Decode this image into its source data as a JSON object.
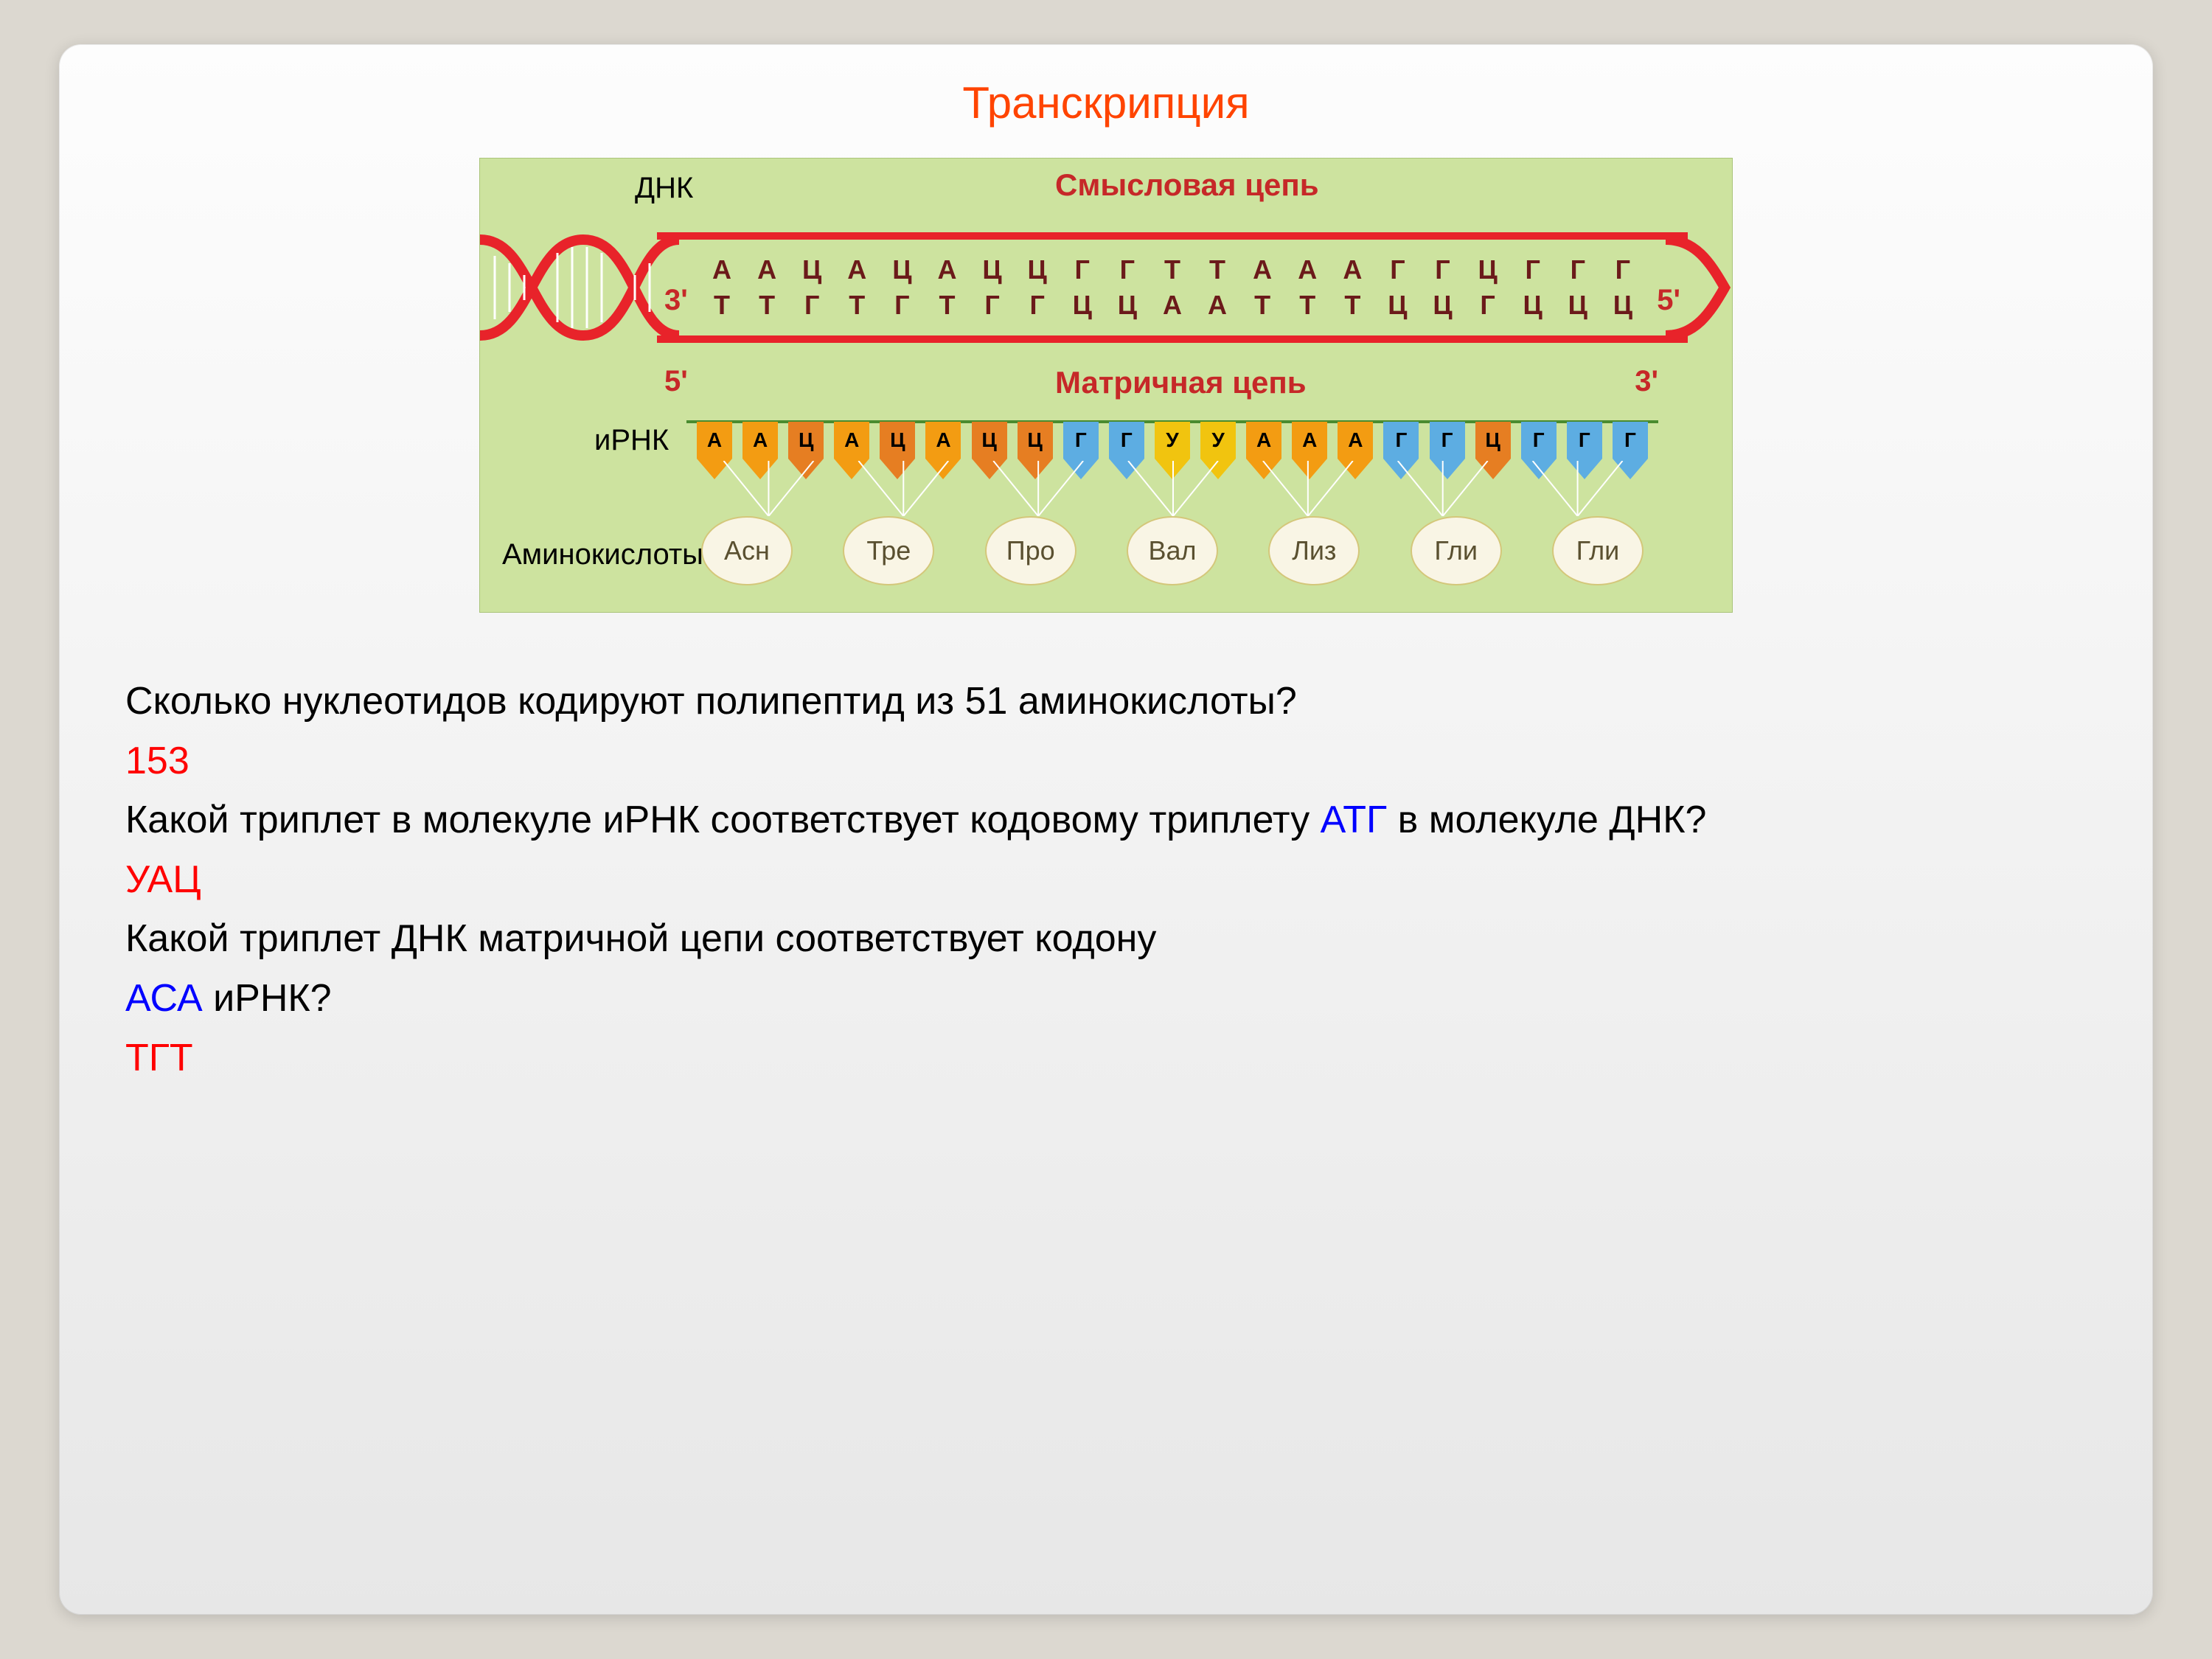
{
  "title": "Транскрипция",
  "diagram": {
    "dnk_label": "ДНК",
    "sense_chain_label": "Смысловая цепь",
    "template_chain_label": "Матричная цепь",
    "mrna_label": "иРНК",
    "amino_acids_label": "Аминокислоты",
    "end_3_prime": "3'",
    "end_5_prime": "5'",
    "sense_strand": [
      "А",
      "А",
      "Ц",
      "А",
      "Ц",
      "А",
      "Ц",
      "Ц",
      "Г",
      "Г",
      "Т",
      "Т",
      "А",
      "А",
      "А",
      "Г",
      "Г",
      "Ц",
      "Г",
      "Г",
      "Г"
    ],
    "template_strand": [
      "Т",
      "Т",
      "Г",
      "Т",
      "Г",
      "Т",
      "Г",
      "Г",
      "Ц",
      "Ц",
      "А",
      "А",
      "Т",
      "Т",
      "Т",
      "Ц",
      "Ц",
      "Г",
      "Ц",
      "Ц",
      "Ц"
    ],
    "mrna": [
      "А",
      "А",
      "Ц",
      "А",
      "Ц",
      "А",
      "Ц",
      "Ц",
      "Г",
      "Г",
      "У",
      "У",
      "А",
      "А",
      "А",
      "Г",
      "Г",
      "Ц",
      "Г",
      "Г",
      "Г"
    ],
    "mrna_colors": [
      "#f39c12",
      "#f39c12",
      "#e67e22",
      "#f39c12",
      "#e67e22",
      "#f39c12",
      "#e67e22",
      "#e67e22",
      "#5dade2",
      "#5dade2",
      "#f1c40f",
      "#f1c40f",
      "#f39c12",
      "#f39c12",
      "#f39c12",
      "#5dade2",
      "#5dade2",
      "#e67e22",
      "#5dade2",
      "#5dade2",
      "#5dade2"
    ],
    "amino_acids": [
      "Асн",
      "Тре",
      "Про",
      "Вал",
      "Лиз",
      "Гли",
      "Гли"
    ],
    "colors": {
      "dna_bar": "#e8232a",
      "mrna_line": "#4a8b2f",
      "diagram_bg": "#cde39f",
      "nt_color": "#6b1a1a",
      "aa_border": "#d4c77a",
      "aa_bg": "#f9f5e5"
    }
  },
  "questions": {
    "q1": "Сколько нуклеотидов кодируют полипептид из 51 аминокислоты?",
    "a1": "153",
    "q2_part1": "Какой триплет в молекуле иРНК соответствует кодовому триплету ",
    "q2_blue": "АТГ",
    "q2_part2": " в молекуле ДНК?",
    "a2": "УАЦ",
    "q3_part1": "Какой триплет ДНК матричной цепи соответствует кодону",
    "q3_blue": "АСА",
    "q3_part2": " иРНК?",
    "a3": "ТГТ"
  }
}
